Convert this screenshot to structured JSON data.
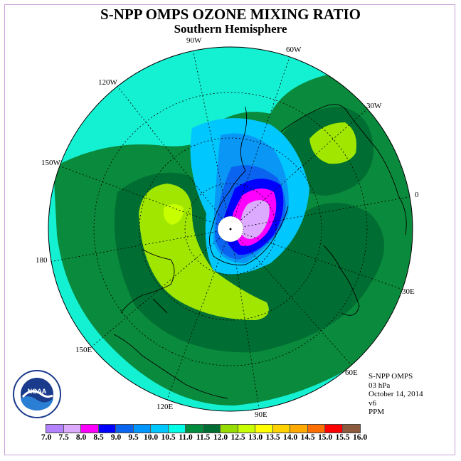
{
  "title": "S-NPP OMPS OZONE MIXING RATIO",
  "subtitle": "Southern Hemisphere",
  "lon_labels": {
    "w90": "90W",
    "w60": "60W",
    "w120": "120W",
    "w30": "30W",
    "w150": "150W",
    "e0": "0",
    "d180": "180",
    "e30": "30E",
    "e150": "150E",
    "e60": "60E",
    "e120": "120E",
    "e90": "90E"
  },
  "info": {
    "instrument": "S-NPP OMPS",
    "level": "03 hPa",
    "date": "October 14, 2014",
    "version": "v6",
    "units": "PPM"
  },
  "logo_text": "NOAA",
  "colorbar": {
    "ticks": [
      "7.0",
      "7.5",
      "8.0",
      "8.5",
      "9.0",
      "9.5",
      "10.0",
      "10.5",
      "11.0",
      "11.5",
      "12.0",
      "12.5",
      "13.0",
      "13.5",
      "14.0",
      "14.5",
      "15.0",
      "15.5",
      "16.0"
    ],
    "colors": [
      "#b482ff",
      "#dcaaff",
      "#ff00ff",
      "#0000ff",
      "#0a64f0",
      "#0096ff",
      "#00c8ff",
      "#00ffe6",
      "#008c3c",
      "#006e32",
      "#96dc00",
      "#c8ff00",
      "#ffff00",
      "#ffd200",
      "#ffaa00",
      "#ff6e00",
      "#ff0000",
      "#8c5a3c"
    ]
  },
  "map_colors": {
    "ocean_cyan": "#14f0d2",
    "mid_green": "#0a8a3c",
    "dark_green": "#006e32",
    "yellow_green": "#a0e600",
    "light_blue": "#00c8ff",
    "blue": "#0a64f0",
    "deep_blue": "#0000ff",
    "magenta": "#ff00ff",
    "lavender": "#dcaaff"
  }
}
